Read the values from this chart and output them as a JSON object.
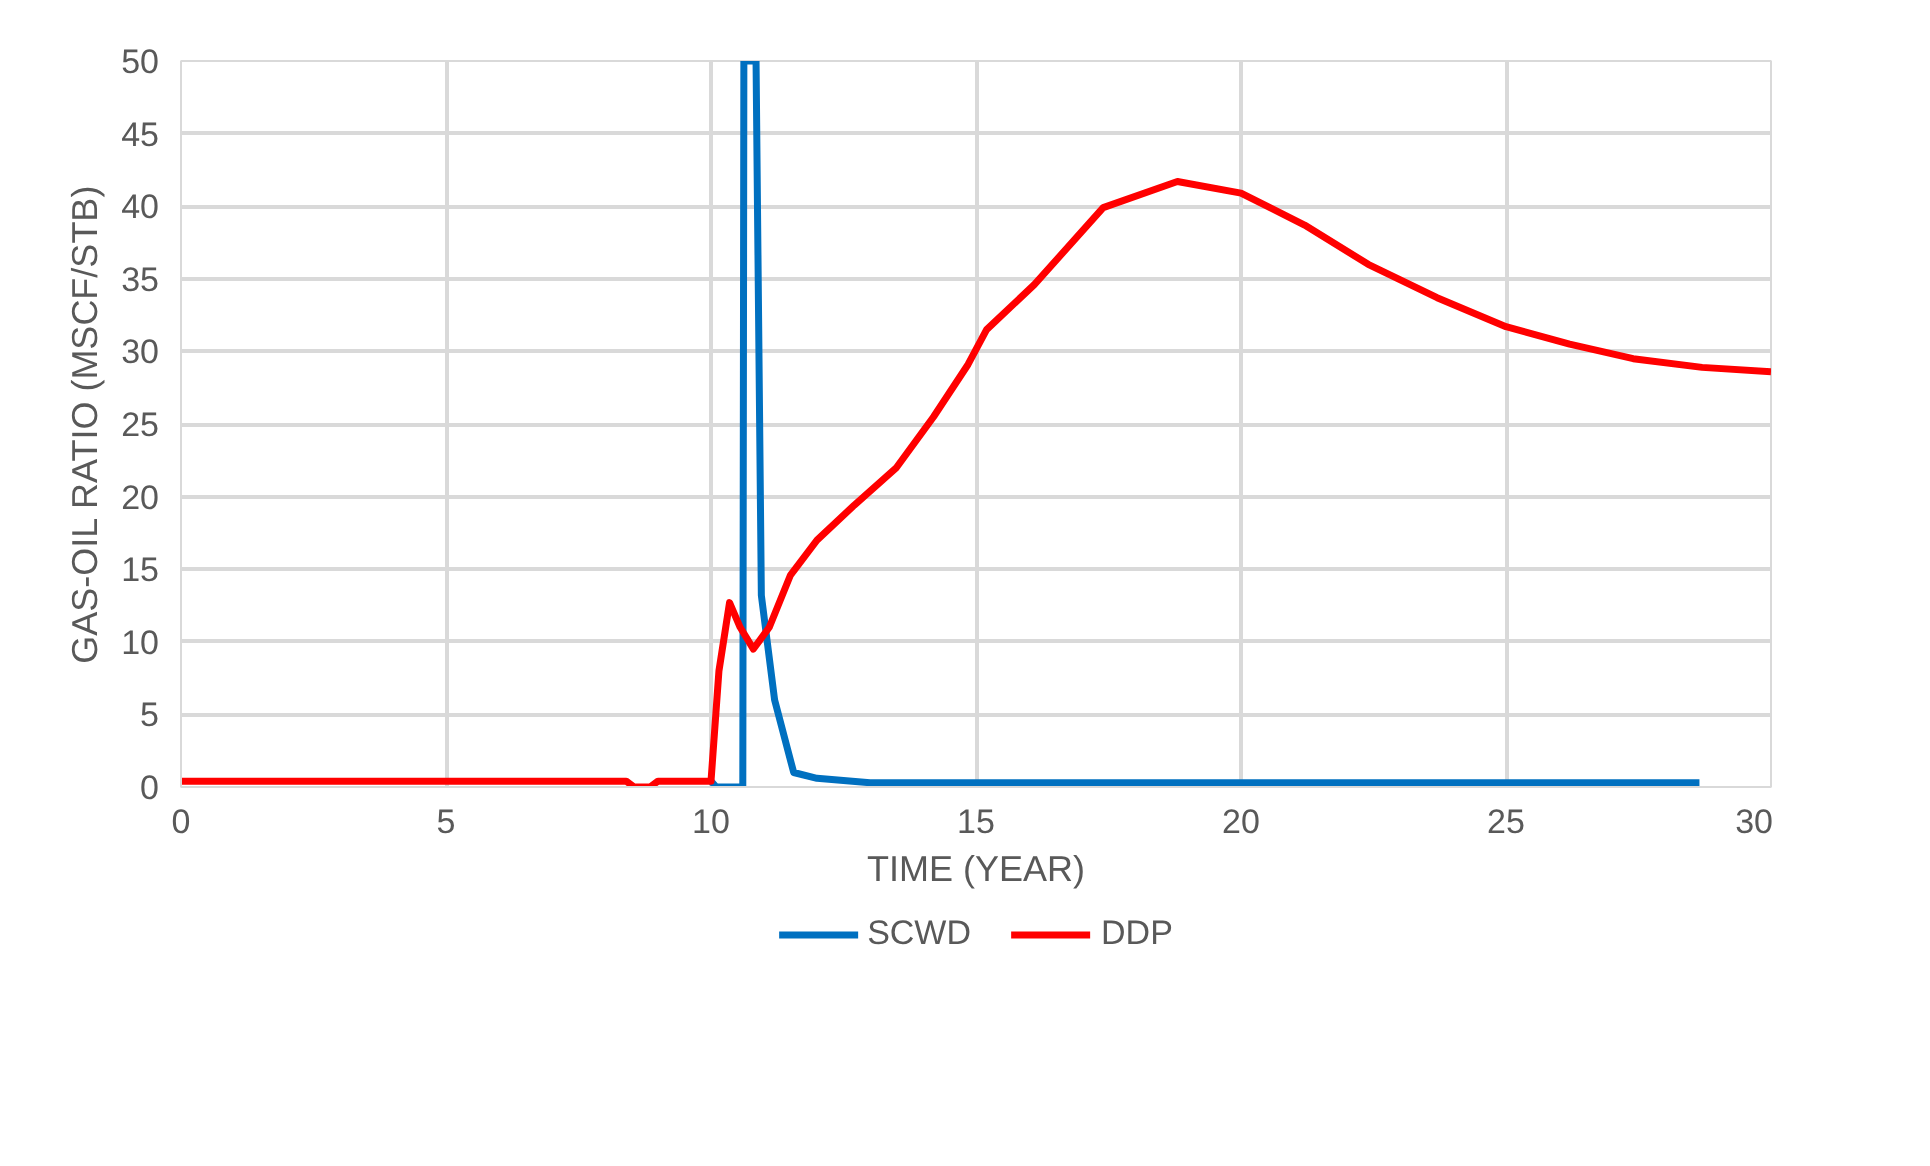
{
  "chart_data": {
    "type": "line",
    "xlabel": "TIME (YEAR)",
    "ylabel": "GAS-OIL RATIO (MSCF/STB)",
    "xlim": [
      0,
      30
    ],
    "ylim": [
      0,
      50
    ],
    "xticks": [
      0,
      5,
      10,
      15,
      20,
      25,
      30
    ],
    "yticks": [
      0,
      5,
      10,
      15,
      20,
      25,
      30,
      35,
      40,
      45,
      50
    ],
    "grid": true,
    "legend": "bottom",
    "marker": "none",
    "line_style": "solid",
    "series": [
      {
        "name": "SCWD",
        "color": "#0070c0",
        "x": [
          10.0,
          10.1,
          10.6,
          10.62,
          10.85,
          10.95,
          11.2,
          11.56,
          12,
          13,
          15,
          20,
          25,
          28.65
        ],
        "values": [
          0.4,
          0.0,
          0.0,
          50,
          50,
          13.2,
          6,
          1.0,
          0.6,
          0.3,
          0.3,
          0.3,
          0.3,
          0.3
        ]
      },
      {
        "name": "DDP",
        "color": "#ff0000",
        "x": [
          0,
          5,
          8.4,
          8.55,
          8.85,
          9.0,
          10.0,
          10.15,
          10.35,
          10.55,
          10.8,
          11.1,
          11.5,
          12,
          12.7,
          13.5,
          14.2,
          14.85,
          15.2,
          16.1,
          17.4,
          18.8,
          20,
          21.2,
          22.4,
          23.7,
          25,
          26.2,
          27.4,
          28.7,
          30
        ],
        "values": [
          0.4,
          0.4,
          0.4,
          0.0,
          0.0,
          0.4,
          0.4,
          8,
          12.7,
          11,
          9.5,
          11,
          14.6,
          17,
          19.4,
          22,
          25.5,
          29.1,
          31.5,
          34.6,
          39.9,
          41.7,
          40.9,
          38.7,
          36.0,
          33.7,
          31.7,
          30.5,
          29.5,
          28.9,
          28.6
        ]
      }
    ]
  }
}
